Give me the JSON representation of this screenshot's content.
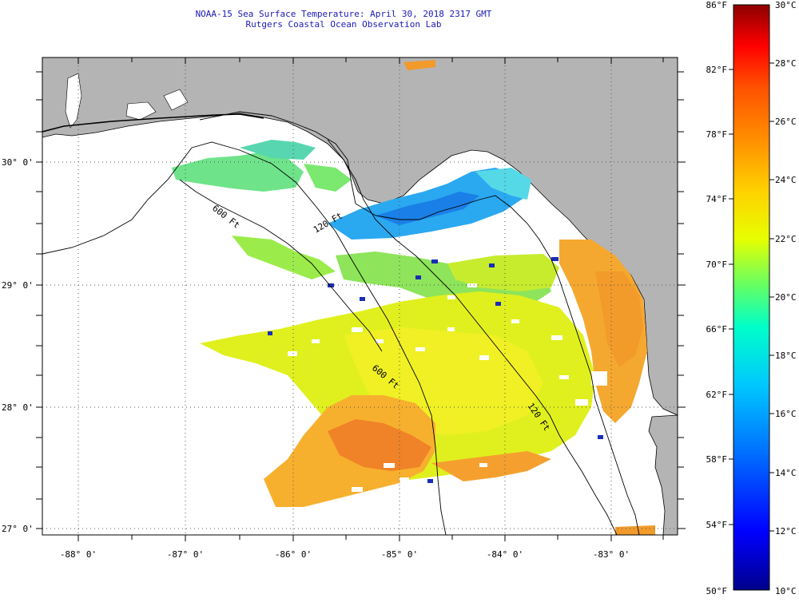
{
  "header": {
    "title": "NOAA-15 Sea Surface Temperature:  April 30, 2018 2317 GMT",
    "subtitle": "Rutgers Coastal Ocean Observation Lab"
  },
  "map": {
    "lat_labels": [
      "30° 0'",
      "29° 0'",
      "28° 0'",
      "27° 0'"
    ],
    "lon_labels": [
      "-88° 0'",
      "-87° 0'",
      "-86° 0'",
      "-85° 0'",
      "-84° 0'",
      "-83° 0'"
    ],
    "contour_labels": [
      "600 Ft",
      "120 Ft",
      "600 Ft",
      "120 Ft"
    ],
    "colors": {
      "land": "#b4b4b4",
      "cloud": "#ffffff",
      "grid": "#555555"
    }
  },
  "colorbar": {
    "fahrenheit_labels": [
      "86°F",
      "82°F",
      "78°F",
      "74°F",
      "70°F",
      "66°F",
      "62°F",
      "58°F",
      "54°F",
      "50°F"
    ],
    "celsius_labels": [
      "30°C",
      "28°C",
      "26°C",
      "24°C",
      "22°C",
      "20°C",
      "18°C",
      "16°C",
      "14°C",
      "12°C",
      "10°C"
    ],
    "gradient": [
      "#00008c",
      "#0000ff",
      "#0064ff",
      "#00c8ff",
      "#00ffc8",
      "#64ff64",
      "#e6ff00",
      "#ffd200",
      "#ff9600",
      "#ff5000",
      "#ff0000",
      "#8c0000"
    ]
  }
}
